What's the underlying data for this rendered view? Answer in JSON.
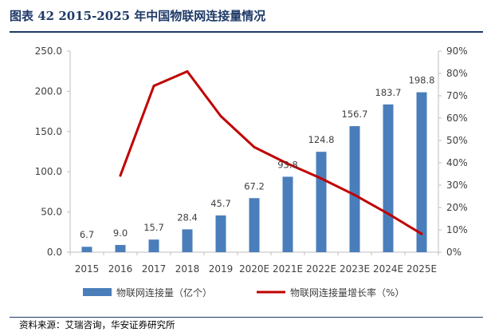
{
  "figure": {
    "title": "图表 42   2015-2025 年中国物联网连接量情况",
    "source": "资料来源：艾瑞咨询，华安证券研究所"
  },
  "colors": {
    "bar": "#4a7ebb",
    "line": "#c00000",
    "heading": "#1f3a68"
  },
  "chart_data": {
    "type": "bar",
    "categories": [
      "2015",
      "2016",
      "2017",
      "2018",
      "2019",
      "2020E",
      "2021E",
      "2022E",
      "2023E",
      "2024E",
      "2025E"
    ],
    "series": [
      {
        "name": "物联网连接量（亿个）",
        "type": "bar",
        "axis": "left",
        "values": [
          6.7,
          9.0,
          15.7,
          28.4,
          45.7,
          67.2,
          93.8,
          124.8,
          156.7,
          183.7,
          198.8
        ],
        "labels": [
          "6.7",
          "9.0",
          "15.7",
          "28.4",
          "45.7",
          "67.2",
          "93.8",
          "124.8",
          "156.7",
          "183.7",
          "198.8"
        ]
      },
      {
        "name": "物联网连接量增长率（%）",
        "type": "line",
        "axis": "right",
        "values": [
          null,
          34.3,
          74.4,
          80.9,
          60.9,
          47.0,
          39.6,
          33.0,
          25.6,
          17.2,
          8.2
        ]
      }
    ],
    "y_left": {
      "min": 0,
      "max": 250,
      "step": 50,
      "ticks": [
        "0.0",
        "50.0",
        "100.0",
        "150.0",
        "200.0",
        "250.0"
      ]
    },
    "y_right": {
      "min": 0,
      "max": 90,
      "step": 10,
      "ticks": [
        "0%",
        "10%",
        "20%",
        "30%",
        "40%",
        "50%",
        "60%",
        "70%",
        "80%",
        "90%"
      ]
    },
    "legend": {
      "position": "bottom"
    }
  }
}
